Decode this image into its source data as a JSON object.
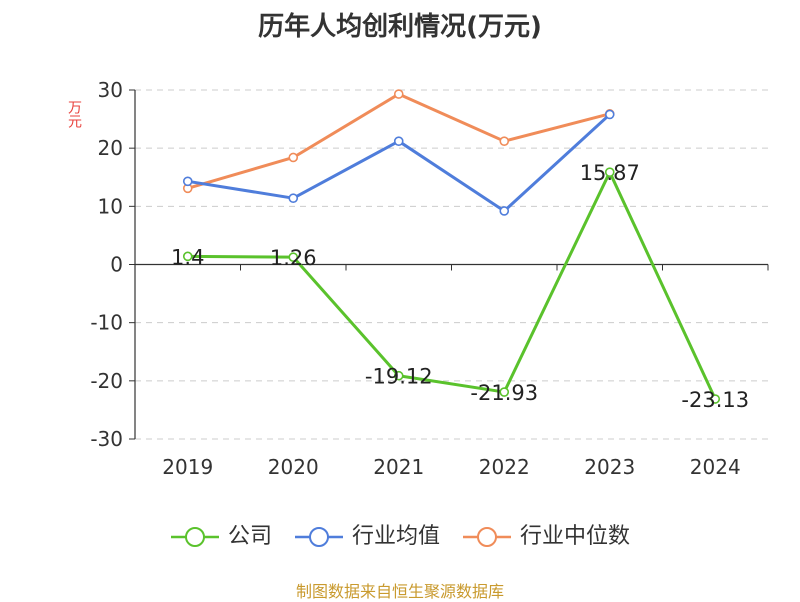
{
  "chart_data": {
    "type": "line",
    "title": "历年人均创利情况(万元)",
    "ylabel": "万元",
    "categories": [
      "2019",
      "2020",
      "2021",
      "2022",
      "2023",
      "2024"
    ],
    "ylim": [
      -30,
      30
    ],
    "yticks": [
      30,
      20,
      10,
      0,
      -10,
      -20,
      -30
    ],
    "grid": true,
    "legend_position": "bottom",
    "series": [
      {
        "name": "公司",
        "color": "#5ac22c",
        "values": [
          1.4,
          1.26,
          -19.12,
          -21.93,
          15.87,
          -23.13
        ],
        "data_labels": [
          "1.4",
          "1.26",
          "-19.12",
          "-21.93",
          "15.87",
          "-23.13"
        ]
      },
      {
        "name": "行业均值",
        "color": "#4f7ddb",
        "values": [
          14.3,
          11.4,
          21.2,
          9.2,
          25.8,
          null
        ]
      },
      {
        "name": "行业中位数",
        "color": "#f08c59",
        "values": [
          13.1,
          18.4,
          29.3,
          21.2,
          25.9,
          null
        ]
      }
    ]
  },
  "footer": "制图数据来自恒生聚源数据库"
}
